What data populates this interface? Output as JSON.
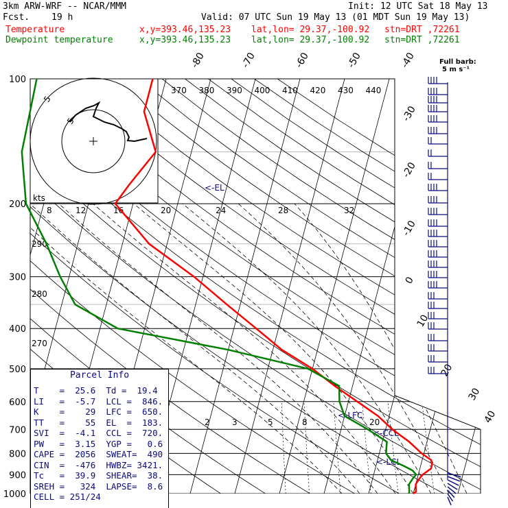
{
  "header": {
    "model": "3km ARW-WRF -- NCAR/MMM",
    "init": "Init: 12 UTC Sat 18 May 13",
    "fcst_label": "Fcst.",
    "fcst_value": "19 h",
    "valid": "Valid: 07 UTC Sun 19 May 13 (01 MDT Sun 19 May 13)",
    "series": [
      {
        "name": "Temperature",
        "xy": "x,y=393.46,135.23",
        "latlon": "lat,lon= 29.37,-100.92",
        "stn": "stn=DRT ,72261",
        "color": "#ff0000"
      },
      {
        "name": "Dewpoint temperature",
        "xy": "x,y=393.46,135.23",
        "latlon": "lat,lon= 29.37,-100.92",
        "stn": "stn=DRT ,72261",
        "color": "#008000"
      }
    ]
  },
  "barb_label": {
    "line1": "Full barb:",
    "line2": "5 m s⁻¹"
  },
  "parcel": {
    "title": "Parcel Info",
    "rows": [
      "T    =  25.6  Td =  19.4",
      "LI   =  -5.7  LCL =  846.",
      "K    =    29  LFC =  650.",
      "TT   =    55  EL  =  183.",
      "SVI  =  -4.1  CCL =  720.",
      "PW   =  3.15  YGP =   0.6",
      "CAPE =  2056  SWEAT=  490",
      "CIN  =  -476  HWBZ= 3421.",
      "Tc   =  39.9  SHEAR=  38.",
      "SREH =   324  LAPSE=  8.6",
      "CELL = 251/24"
    ]
  },
  "chart_data": {
    "type": "skew-t",
    "pressure_levels": [
      100,
      200,
      300,
      400,
      500,
      600,
      700,
      800,
      900,
      1000
    ],
    "pressure_labels": [
      "100",
      "200",
      "300",
      "400",
      "500",
      "600",
      "700",
      "800",
      "900",
      "1000"
    ],
    "temperature_tick_labels": [
      "-80",
      "-70",
      "-60",
      "-50",
      "-40",
      "-30",
      "-20",
      "-10",
      "0",
      "10",
      "20",
      "30",
      "40"
    ],
    "theta_labels": [
      "370",
      "380",
      "390",
      "400",
      "410",
      "420",
      "430",
      "440"
    ],
    "theta_e_labels": [
      "290",
      "280",
      "270"
    ],
    "mixing_ratio_labels": [
      "8",
      "12",
      "16",
      "20",
      "24",
      "28",
      "32"
    ],
    "mixing_ratio_lower_labels": [
      "2",
      "3",
      "5",
      "8",
      "20"
    ],
    "hodograph": {
      "units_label": "kts",
      "ring_labels": [
        "5",
        "5"
      ]
    },
    "annotations": [
      "<-EL",
      "<-LFC",
      "<-CCL",
      "<-LCL"
    ],
    "series": [
      {
        "name": "Temperature",
        "color": "#ff0000",
        "points": [
          [
            100,
            -63
          ],
          [
            120,
            -63
          ],
          [
            150,
            -58
          ],
          [
            180,
            -62
          ],
          [
            200,
            -64
          ],
          [
            250,
            -54
          ],
          [
            300,
            -42
          ],
          [
            350,
            -33
          ],
          [
            400,
            -25
          ],
          [
            450,
            -18
          ],
          [
            500,
            -10
          ],
          [
            550,
            -4
          ],
          [
            600,
            2
          ],
          [
            650,
            7.5
          ],
          [
            700,
            11.5
          ],
          [
            750,
            16
          ],
          [
            800,
            19.5
          ],
          [
            830,
            22
          ],
          [
            850,
            22.5
          ],
          [
            870,
            22.5
          ],
          [
            880,
            22
          ],
          [
            900,
            21
          ],
          [
            920,
            20.5
          ],
          [
            950,
            20
          ],
          [
            990,
            20.5
          ],
          [
            1000,
            20
          ]
        ]
      },
      {
        "name": "Dewpoint temperature",
        "color": "#008000",
        "points": [
          [
            100,
            -89
          ],
          [
            150,
            -88
          ],
          [
            200,
            -84
          ],
          [
            250,
            -77
          ],
          [
            300,
            -72
          ],
          [
            350,
            -67
          ],
          [
            400,
            -56
          ],
          [
            450,
            -30
          ],
          [
            500,
            -11
          ],
          [
            550,
            -3
          ],
          [
            600,
            -2
          ],
          [
            650,
            0
          ],
          [
            700,
            6
          ],
          [
            750,
            11
          ],
          [
            800,
            11.5
          ],
          [
            830,
            13
          ],
          [
            860,
            16.5
          ],
          [
            880,
            18.5
          ],
          [
            900,
            19.5
          ],
          [
            920,
            19
          ],
          [
            950,
            18.5
          ],
          [
            990,
            19
          ],
          [
            1000,
            19
          ]
        ]
      }
    ]
  }
}
